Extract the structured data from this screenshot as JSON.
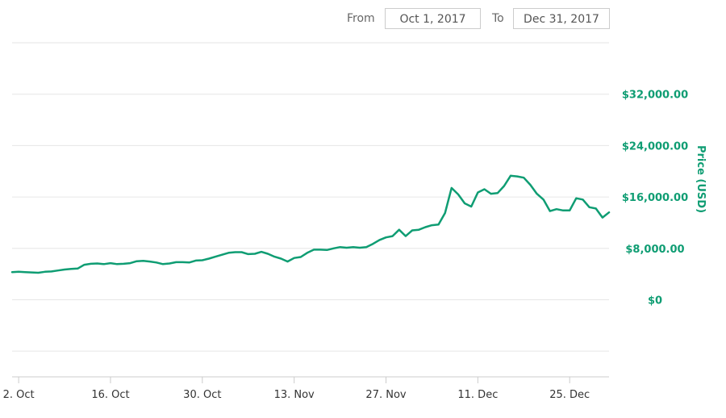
{
  "date_range": {
    "from_label": "From",
    "from_value": "Oct 1, 2017",
    "to_label": "To",
    "to_value": "Dec 31, 2017"
  },
  "colors": {
    "series": "#0f9d73",
    "grid": "#e6e6e6",
    "axis": "#cccccc"
  },
  "chart_data": {
    "type": "line",
    "title": "",
    "xlabel": "",
    "ylabel": "Price (USD)",
    "y_axis_side": "right",
    "grid": true,
    "xlim": [
      "2017-10-01",
      "2017-12-31"
    ],
    "ylim": [
      -12000,
      40000
    ],
    "yticks": [
      0,
      8000,
      16000,
      24000,
      32000
    ],
    "ytick_labels": [
      "$0",
      "$8,000.00",
      "$16,000.00",
      "$24,000.00",
      "$32,000.00"
    ],
    "xticks": [
      "2017-10-02",
      "2017-10-16",
      "2017-10-30",
      "2017-11-13",
      "2017-11-27",
      "2017-12-11",
      "2017-12-25"
    ],
    "xtick_labels": [
      "2. Oct",
      "16. Oct",
      "30. Oct",
      "13. Nov",
      "27. Nov",
      "11. Dec",
      "25. Dec"
    ],
    "series": [
      {
        "points": [
          [
            "2017-10-01",
            4300
          ],
          [
            "2017-10-02",
            4350
          ],
          [
            "2017-10-03",
            4300
          ],
          [
            "2017-10-04",
            4250
          ],
          [
            "2017-10-05",
            4200
          ],
          [
            "2017-10-06",
            4350
          ],
          [
            "2017-10-07",
            4400
          ],
          [
            "2017-10-08",
            4550
          ],
          [
            "2017-10-09",
            4700
          ],
          [
            "2017-10-10",
            4800
          ],
          [
            "2017-10-11",
            4850
          ],
          [
            "2017-10-12",
            5450
          ],
          [
            "2017-10-13",
            5600
          ],
          [
            "2017-10-14",
            5650
          ],
          [
            "2017-10-15",
            5550
          ],
          [
            "2017-10-16",
            5700
          ],
          [
            "2017-10-17",
            5550
          ],
          [
            "2017-10-18",
            5600
          ],
          [
            "2017-10-19",
            5700
          ],
          [
            "2017-10-20",
            6000
          ],
          [
            "2017-10-21",
            6050
          ],
          [
            "2017-10-22",
            5950
          ],
          [
            "2017-10-23",
            5800
          ],
          [
            "2017-10-24",
            5550
          ],
          [
            "2017-10-25",
            5650
          ],
          [
            "2017-10-26",
            5850
          ],
          [
            "2017-10-27",
            5850
          ],
          [
            "2017-10-28",
            5800
          ],
          [
            "2017-10-29",
            6100
          ],
          [
            "2017-10-30",
            6150
          ],
          [
            "2017-10-31",
            6400
          ],
          [
            "2017-11-01",
            6700
          ],
          [
            "2017-11-02",
            7000
          ],
          [
            "2017-11-03",
            7300
          ],
          [
            "2017-11-04",
            7400
          ],
          [
            "2017-11-05",
            7400
          ],
          [
            "2017-11-06",
            7100
          ],
          [
            "2017-11-07",
            7150
          ],
          [
            "2017-11-08",
            7450
          ],
          [
            "2017-11-09",
            7150
          ],
          [
            "2017-11-10",
            6700
          ],
          [
            "2017-11-11",
            6400
          ],
          [
            "2017-11-12",
            5950
          ],
          [
            "2017-11-13",
            6500
          ],
          [
            "2017-11-14",
            6650
          ],
          [
            "2017-11-15",
            7300
          ],
          [
            "2017-11-16",
            7800
          ],
          [
            "2017-11-17",
            7800
          ],
          [
            "2017-11-18",
            7750
          ],
          [
            "2017-11-19",
            8000
          ],
          [
            "2017-11-20",
            8200
          ],
          [
            "2017-11-21",
            8100
          ],
          [
            "2017-11-22",
            8200
          ],
          [
            "2017-11-23",
            8100
          ],
          [
            "2017-11-24",
            8200
          ],
          [
            "2017-11-25",
            8700
          ],
          [
            "2017-11-26",
            9300
          ],
          [
            "2017-11-27",
            9700
          ],
          [
            "2017-11-28",
            9900
          ],
          [
            "2017-11-29",
            10900
          ],
          [
            "2017-11-30",
            9900
          ],
          [
            "2017-12-01",
            10800
          ],
          [
            "2017-12-02",
            10900
          ],
          [
            "2017-12-03",
            11300
          ],
          [
            "2017-12-04",
            11600
          ],
          [
            "2017-12-05",
            11700
          ],
          [
            "2017-12-06",
            13500
          ],
          [
            "2017-12-07",
            17400
          ],
          [
            "2017-12-08",
            16400
          ],
          [
            "2017-12-09",
            15000
          ],
          [
            "2017-12-10",
            14500
          ],
          [
            "2017-12-11",
            16700
          ],
          [
            "2017-12-12",
            17200
          ],
          [
            "2017-12-13",
            16500
          ],
          [
            "2017-12-14",
            16600
          ],
          [
            "2017-12-15",
            17700
          ],
          [
            "2017-12-16",
            19300
          ],
          [
            "2017-12-17",
            19200
          ],
          [
            "2017-12-18",
            19000
          ],
          [
            "2017-12-19",
            17900
          ],
          [
            "2017-12-20",
            16500
          ],
          [
            "2017-12-21",
            15600
          ],
          [
            "2017-12-22",
            13800
          ],
          [
            "2017-12-23",
            14100
          ],
          [
            "2017-12-24",
            13900
          ],
          [
            "2017-12-25",
            13900
          ],
          [
            "2017-12-26",
            15800
          ],
          [
            "2017-12-27",
            15600
          ],
          [
            "2017-12-28",
            14400
          ],
          [
            "2017-12-29",
            14200
          ],
          [
            "2017-12-30",
            12800
          ],
          [
            "2017-12-31",
            13600
          ]
        ]
      }
    ]
  }
}
